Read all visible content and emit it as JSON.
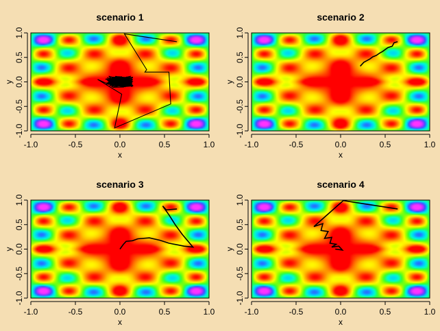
{
  "colors": {
    "background": "#F5DEB3",
    "trajectory": "#000000",
    "palette": [
      "#ff0000",
      "#ff6a00",
      "#ffbf00",
      "#ffff00",
      "#99ff00",
      "#33ff33",
      "#00ffcc",
      "#00ccff",
      "#3355ff",
      "#aa33ff",
      "#ff33ff"
    ]
  },
  "chart_data": [
    {
      "type": "line",
      "title": "scenario 1",
      "xlabel": "x",
      "ylabel": "y",
      "xlim": [
        -1,
        1
      ],
      "ylim": [
        -1,
        1
      ],
      "xticks": [
        "-1.0",
        "-0.5",
        "0.0",
        "0.5",
        "1.0"
      ],
      "yticks": [
        "-1.0",
        "-0.5",
        "0.0",
        "0.5",
        "1.0"
      ],
      "background": "heatmap",
      "path": [
        [
          0.64,
          0.82
        ],
        [
          0.05,
          0.98
        ],
        [
          0.3,
          0.25
        ],
        [
          0.28,
          0.2
        ],
        [
          0.55,
          0.2
        ],
        [
          0.57,
          -0.45
        ],
        [
          -0.06,
          -0.94
        ],
        [
          0.02,
          -0.25
        ],
        [
          -0.25,
          0.05
        ]
      ],
      "cluster": {
        "center": [
          0.0,
          0.0
        ],
        "spread": [
          0.17,
          0.12
        ],
        "steps": 700
      }
    },
    {
      "type": "line",
      "title": "scenario 2",
      "xlabel": "x",
      "ylabel": "y",
      "xlim": [
        -1,
        1
      ],
      "ylim": [
        -1,
        1
      ],
      "xticks": [
        "-1.0",
        "-0.5",
        "0.0",
        "0.5",
        "1.0"
      ],
      "yticks": [
        "-1.0",
        "-0.5",
        "0.0",
        "0.5",
        "1.0"
      ],
      "background": "heatmap",
      "path": [
        [
          0.64,
          0.82
        ],
        [
          0.6,
          0.8
        ],
        [
          0.58,
          0.73
        ],
        [
          0.53,
          0.7
        ],
        [
          0.5,
          0.66
        ],
        [
          0.47,
          0.62
        ],
        [
          0.44,
          0.59
        ],
        [
          0.4,
          0.54
        ],
        [
          0.36,
          0.51
        ],
        [
          0.33,
          0.47
        ],
        [
          0.29,
          0.43
        ],
        [
          0.26,
          0.4
        ],
        [
          0.22,
          0.32
        ]
      ]
    },
    {
      "type": "line",
      "title": "scenario 3",
      "xlabel": "x",
      "ylabel": "y",
      "xlim": [
        -1,
        1
      ],
      "ylim": [
        -1,
        1
      ],
      "xticks": [
        "-1.0",
        "-0.5",
        "0.0",
        "0.5",
        "1.0"
      ],
      "yticks": [
        "-1.0",
        "-0.5",
        "0.0",
        "0.5",
        "1.0"
      ],
      "background": "heatmap",
      "path": [
        [
          0.64,
          0.82
        ],
        [
          0.52,
          0.8
        ],
        [
          0.48,
          0.88
        ],
        [
          0.55,
          0.7
        ],
        [
          0.62,
          0.5
        ],
        [
          0.7,
          0.3
        ],
        [
          0.82,
          0.04
        ],
        [
          0.72,
          0.06
        ],
        [
          0.55,
          0.12
        ],
        [
          0.45,
          0.18
        ],
        [
          0.33,
          0.23
        ],
        [
          0.2,
          0.21
        ],
        [
          0.14,
          0.17
        ],
        [
          0.07,
          0.16
        ],
        [
          0.04,
          0.1
        ],
        [
          0.02,
          0.05
        ],
        [
          0.0,
          0.0
        ]
      ]
    },
    {
      "type": "line",
      "title": "scenario 4",
      "xlabel": "x",
      "ylabel": "y",
      "xlim": [
        -1,
        1
      ],
      "ylim": [
        -1,
        1
      ],
      "xticks": [
        "-1.0",
        "-0.5",
        "0.0",
        "0.5",
        "1.0"
      ],
      "yticks": [
        "-1.0",
        "-0.5",
        "0.0",
        "0.5",
        "1.0"
      ],
      "background": "heatmap",
      "path": [
        [
          0.64,
          0.82
        ],
        [
          0.03,
          0.99
        ],
        [
          -0.3,
          0.46
        ],
        [
          -0.2,
          0.52
        ],
        [
          -0.22,
          0.38
        ],
        [
          -0.14,
          0.36
        ],
        [
          -0.18,
          0.22
        ],
        [
          -0.1,
          0.24
        ],
        [
          -0.12,
          0.12
        ],
        [
          -0.05,
          0.1
        ],
        [
          -0.1,
          0.04
        ],
        [
          -0.02,
          0.06
        ],
        [
          0.02,
          -0.02
        ],
        [
          -0.06,
          0.0
        ]
      ]
    }
  ]
}
